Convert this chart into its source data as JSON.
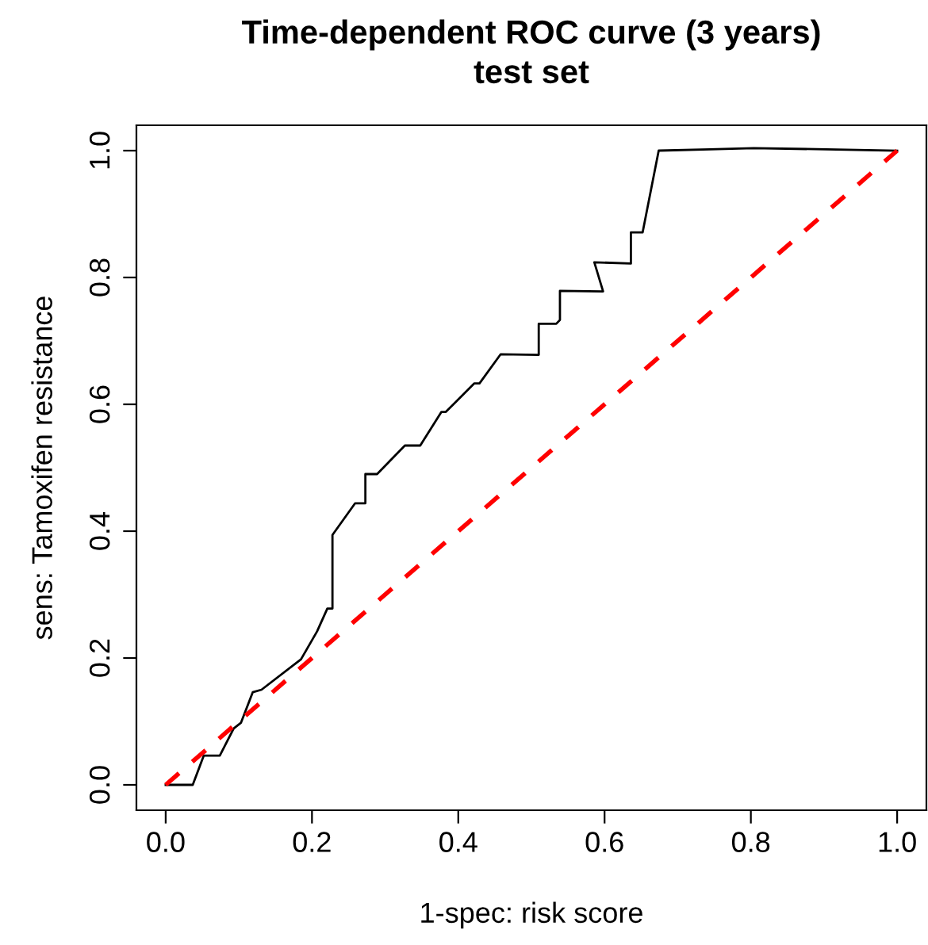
{
  "chart_data": {
    "type": "line",
    "title": "Time-dependent ROC curve (3 years)",
    "subtitle": "test set",
    "xlabel": "1-spec: risk score",
    "ylabel": "sens: Tamoxifen resistance",
    "xlim": [
      -0.04,
      1.04
    ],
    "ylim": [
      -0.04,
      1.04
    ],
    "xticks": [
      {
        "value": 0,
        "label": "0.0"
      },
      0.2,
      0.4,
      0.6,
      0.8,
      {
        "value": 1,
        "label": "1.0"
      }
    ],
    "yticks": [
      {
        "value": 0,
        "label": "0.0"
      },
      0.2,
      0.4,
      0.6,
      0.8,
      {
        "value": 1,
        "label": "1.0"
      }
    ],
    "grid": false,
    "legend": false,
    "marker": "none",
    "series": [
      {
        "color": "#000000",
        "line_style": "solid",
        "x": [
          0,
          0.037,
          0.052,
          0.074,
          0.093,
          0.103,
          0.119,
          0.131,
          0.185,
          0.207,
          0.221,
          0.228,
          0.228,
          0.259,
          0.273,
          0.273,
          0.289,
          0.327,
          0.348,
          0.377,
          0.383,
          0.422,
          0.429,
          0.458,
          0.51,
          0.51,
          0.534,
          0.539,
          0.539,
          0.598,
          0.586,
          0.636,
          0.636,
          0.652,
          0.674,
          0.744,
          0.804,
          1.0
        ],
        "values": [
          0,
          0,
          0.046,
          0.046,
          0.089,
          0.098,
          0.146,
          0.15,
          0.198,
          0.242,
          0.278,
          0.278,
          0.394,
          0.444,
          0.444,
          0.49,
          0.49,
          0.535,
          0.535,
          0.588,
          0.588,
          0.633,
          0.633,
          0.679,
          0.678,
          0.727,
          0.727,
          0.733,
          0.779,
          0.778,
          0.824,
          0.822,
          0.871,
          0.871,
          1.0,
          1.002,
          1.004,
          1.0
        ]
      },
      {
        "color": "#ff0000",
        "line_style": "dashed",
        "x": [
          0,
          1
        ],
        "values": [
          0,
          1
        ]
      }
    ]
  }
}
